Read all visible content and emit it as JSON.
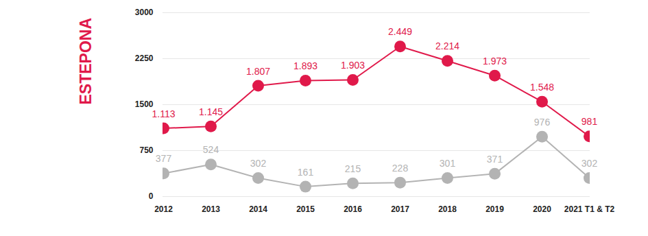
{
  "chart_data": {
    "type": "line",
    "title": "ESTEPONA",
    "categories": [
      "2012",
      "2013",
      "2014",
      "2015",
      "2016",
      "2017",
      "2018",
      "2019",
      "2020",
      "2021 T1 & T2"
    ],
    "series": [
      {
        "color": "#e0194a",
        "marker": "circle",
        "values": [
          1113,
          1145,
          1807,
          1893,
          1903,
          2449,
          2214,
          1973,
          1548,
          981
        ],
        "value_labels": [
          "1.113",
          "1.145",
          "1.807",
          "1.893",
          "1.903",
          "2.449",
          "2.214",
          "1.973",
          "1.548",
          "981"
        ]
      },
      {
        "color": "#b3b3b3",
        "marker": "circle",
        "values": [
          377,
          524,
          302,
          161,
          215,
          228,
          301,
          371,
          976,
          302
        ]
      }
    ],
    "ylim": [
      0,
      3000
    ],
    "yticks": [
      0,
      750,
      1500,
      2250,
      3000
    ],
    "grid": true,
    "data_labels": true
  }
}
